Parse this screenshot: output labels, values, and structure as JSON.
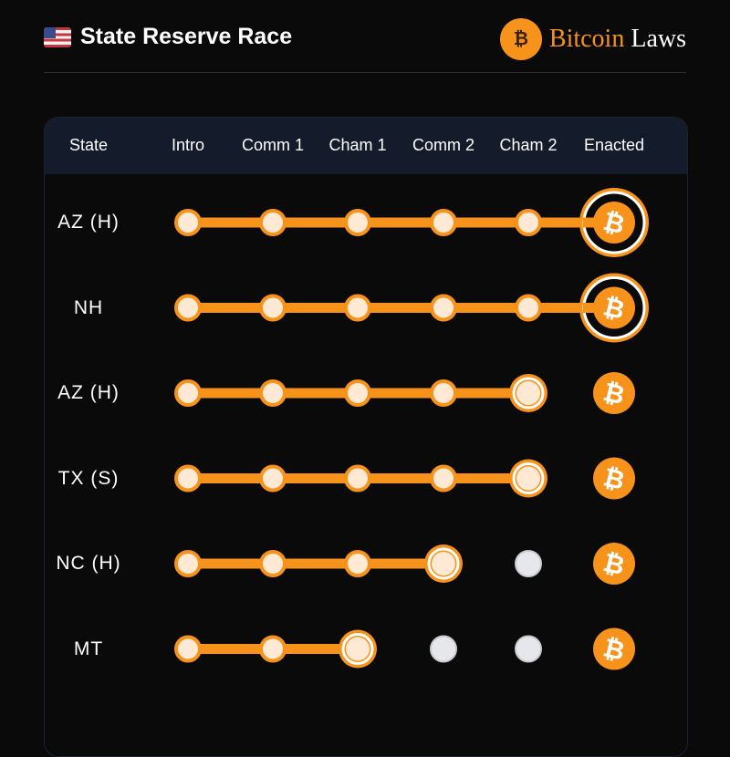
{
  "header": {
    "title": "State Reserve Race",
    "flag_icon": "us-flag-icon",
    "brand_part1": "Bitcoin",
    "brand_part2": "Laws",
    "brand_logo": "eagle-seal-logo"
  },
  "colors": {
    "accent": "#f7931a",
    "node_fill": "#fde9d4",
    "pending": "#e6e7ea",
    "header_bg": "#141c2c"
  },
  "table": {
    "columns": [
      "State",
      "Intro",
      "Comm 1",
      "Cham 1",
      "Comm 2",
      "Cham 2",
      "Enacted"
    ],
    "rows": [
      {
        "state": "AZ (H)",
        "stage": "Enacted"
      },
      {
        "state": "NH",
        "stage": "Enacted"
      },
      {
        "state": "AZ (H)",
        "stage": "Cham 2"
      },
      {
        "state": "TX (S)",
        "stage": "Cham 2"
      },
      {
        "state": "NC (H)",
        "stage": "Comm 2"
      },
      {
        "state": "MT",
        "stage": "Cham 1"
      }
    ]
  }
}
